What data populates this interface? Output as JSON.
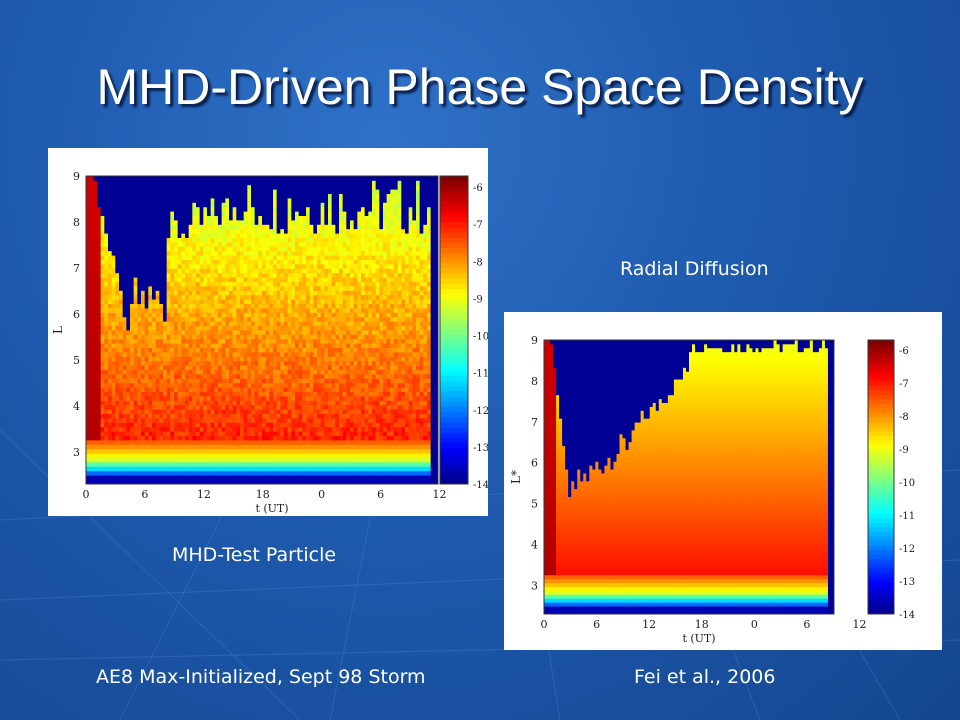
{
  "title": "MHD-Driven Phase Space Density",
  "captions": {
    "left": "MHD-Test Particle",
    "right": "Radial Diffusion",
    "bottom_left": "AE8 Max-Initialized, Sept 98 Storm",
    "bottom_right": "Fei et al., 2006"
  },
  "chart_data": [
    {
      "type": "heatmap",
      "title": "",
      "xlabel": "t (UT)",
      "ylabel": "L",
      "x_ticks": [
        "0",
        "6",
        "12",
        "18",
        "0",
        "6",
        "12"
      ],
      "y_ticks": [
        "3",
        "4",
        "5",
        "6",
        "7",
        "8",
        "9"
      ],
      "ylim": [
        2.3,
        9
      ],
      "colorbar": {
        "ticks": [
          "-6",
          "-7",
          "-8",
          "-9",
          "-10",
          "-11",
          "-12",
          "-13",
          "-14"
        ],
        "range": [
          -14,
          -5.7
        ]
      },
      "colormap": "jet"
    },
    {
      "type": "heatmap",
      "title": "",
      "xlabel": "t (UT)",
      "ylabel": "L*",
      "x_ticks": [
        "0",
        "6",
        "12",
        "18",
        "0",
        "6",
        "12"
      ],
      "y_ticks": [
        "3",
        "4",
        "5",
        "6",
        "7",
        "8",
        "9"
      ],
      "ylim": [
        2.3,
        9
      ],
      "colorbar": {
        "ticks": [
          "-6",
          "-7",
          "-8",
          "-9",
          "-10",
          "-11",
          "-12",
          "-13",
          "-14"
        ],
        "range": [
          -14,
          -5.7
        ]
      },
      "colormap": "jet"
    }
  ]
}
